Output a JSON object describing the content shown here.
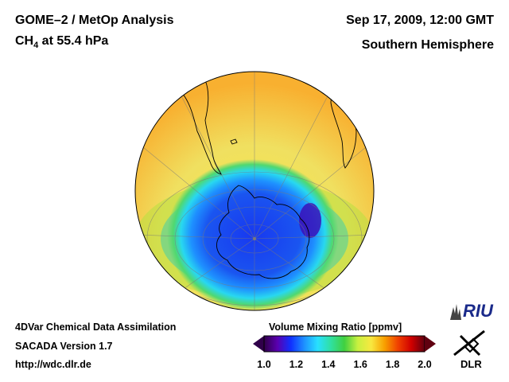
{
  "header": {
    "title_line1": "GOME–2 / MetOp Analysis",
    "species_main": "CH",
    "species_sub": "4",
    "species_rest": " at 55.4 hPa",
    "datetime": "Sep 17, 2009, 12:00 GMT",
    "region": "Southern Hemisphere"
  },
  "footer": {
    "line1": "4DVar Chemical Data Assimilation",
    "line2": "SACADA Version 1.7",
    "line3": "http://wdc.dlr.de"
  },
  "colorbar": {
    "title": "Volume Mixing Ratio [ppmv]",
    "ticks": [
      "1.0",
      "1.2",
      "1.4",
      "1.6",
      "1.8",
      "2.0"
    ],
    "min": 1.0,
    "max": 2.0,
    "colors": [
      "#30004a",
      "#5a00b0",
      "#1030ff",
      "#1e90ff",
      "#28e0ff",
      "#30e0a0",
      "#40d040",
      "#c8f040",
      "#f8e840",
      "#f8a000",
      "#f04000",
      "#d00000",
      "#600010"
    ]
  },
  "logos": {
    "riu": "RIU",
    "dlr": "DLR"
  },
  "map": {
    "projection": "orthographic-south-polar",
    "background_value_ppmv": 1.6,
    "vortex_value_ppmv": 1.25,
    "vortex_min_ppmv": 1.05
  }
}
